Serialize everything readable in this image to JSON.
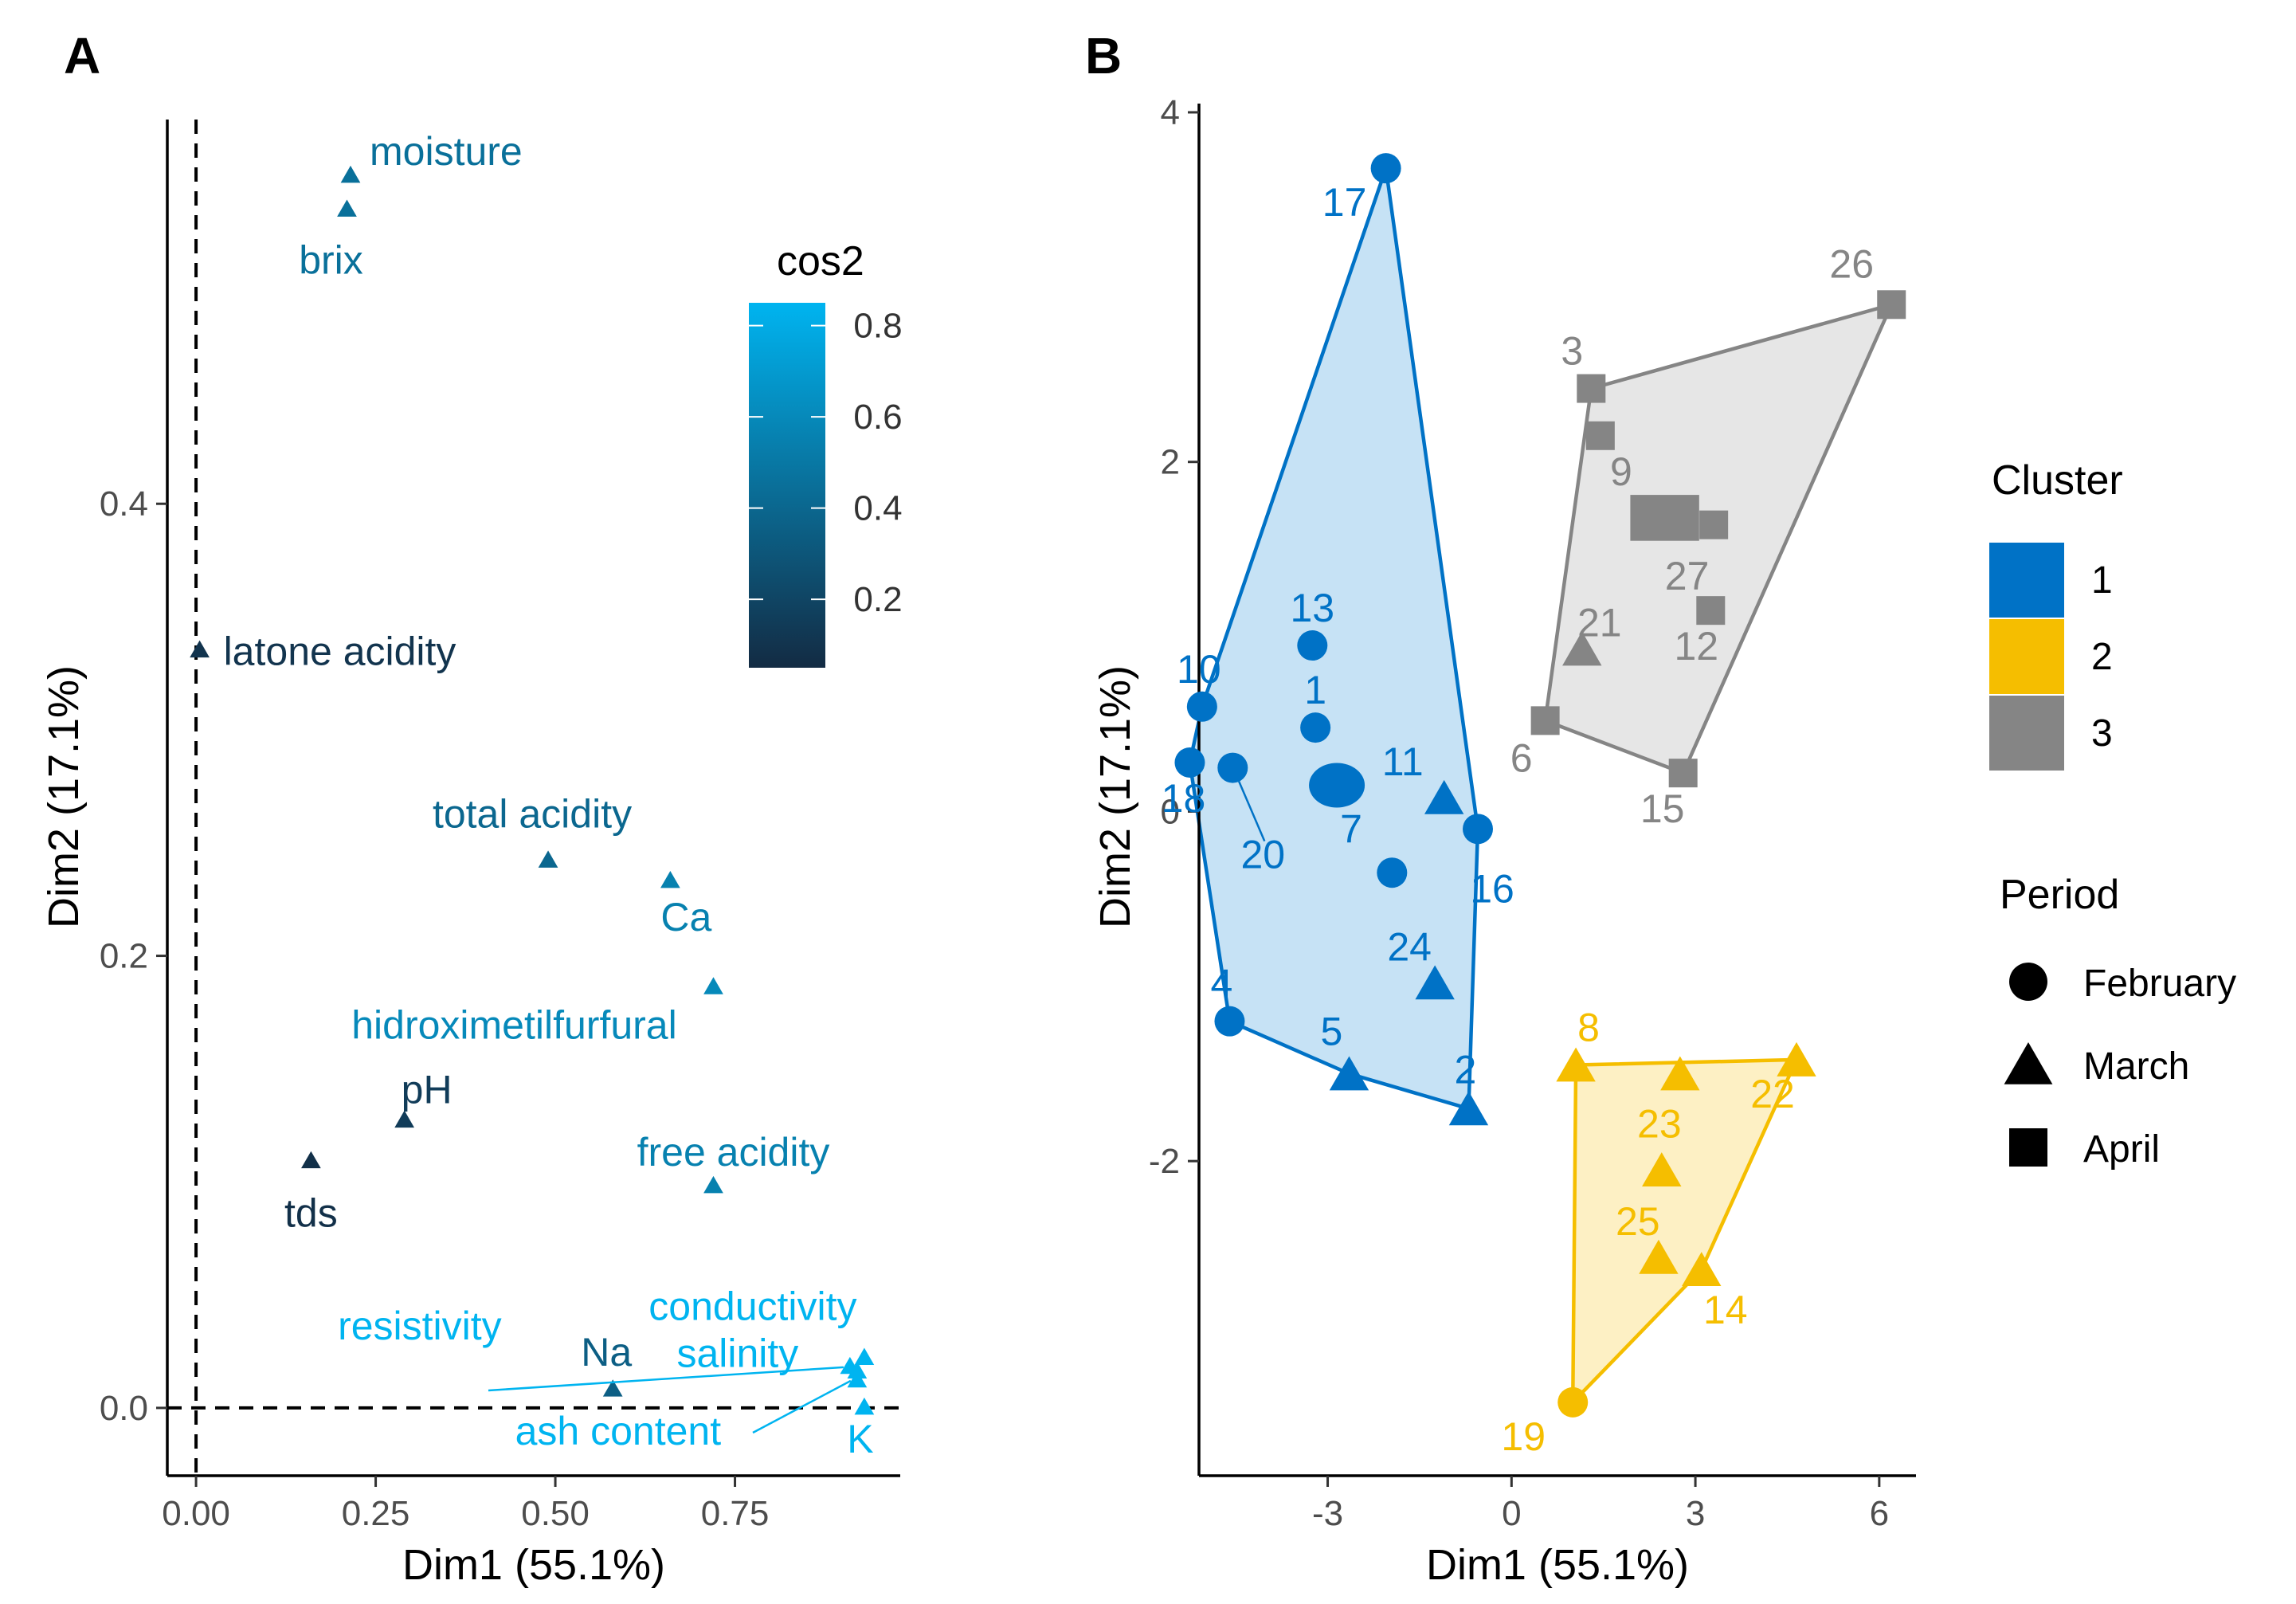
{
  "chart_data": [
    {
      "panel": "A",
      "type": "scatter",
      "xlabel": "Dim1 (55.1%)",
      "ylabel": "Dim2 (17.1%)",
      "xlim": [
        -0.04,
        0.98
      ],
      "ylim": [
        -0.03,
        0.57
      ],
      "xticks": [
        0.0,
        0.25,
        0.5,
        0.75
      ],
      "xtick_labels": [
        "0.00",
        "0.25",
        "0.50",
        "0.75"
      ],
      "yticks": [
        0.0,
        0.2,
        0.4
      ],
      "ytick_labels": [
        "0.0",
        "0.2",
        "0.4"
      ],
      "reference_lines": {
        "x": 0,
        "y": 0,
        "style": "dashed"
      },
      "color_by": "cos2",
      "colorbar": {
        "title": "cos2",
        "range": [
          0.05,
          0.85
        ],
        "ticks": [
          0.2,
          0.4,
          0.6,
          0.8
        ],
        "tick_labels": [
          "0.2",
          "0.4",
          "0.6",
          "0.8"
        ],
        "low_color": "#132b43",
        "high_color": "#00b4f0"
      },
      "variables": [
        {
          "name": "moisture",
          "x": 0.215,
          "y": 0.545,
          "cos2": 0.45
        },
        {
          "name": "brix",
          "x": 0.21,
          "y": 0.53,
          "cos2": 0.45
        },
        {
          "name": "latone acidity",
          "x": 0.005,
          "y": 0.335,
          "cos2": 0.1
        },
        {
          "name": "total acidity",
          "x": 0.49,
          "y": 0.242,
          "cos2": 0.4
        },
        {
          "name": "Ca",
          "x": 0.66,
          "y": 0.233,
          "cos2": 0.55
        },
        {
          "name": "hidroximetilfurfural",
          "x": 0.72,
          "y": 0.186,
          "cos2": 0.6
        },
        {
          "name": "pH",
          "x": 0.29,
          "y": 0.127,
          "cos2": 0.15
        },
        {
          "name": "tds",
          "x": 0.16,
          "y": 0.109,
          "cos2": 0.08
        },
        {
          "name": "free acidity",
          "x": 0.72,
          "y": 0.098,
          "cos2": 0.55
        },
        {
          "name": "conductivity",
          "x": 0.93,
          "y": 0.022,
          "cos2": 0.85
        },
        {
          "name": "resistivity",
          "x": 0.91,
          "y": 0.018,
          "cos2": 0.85
        },
        {
          "name": "salinity",
          "x": 0.92,
          "y": 0.016,
          "cos2": 0.85
        },
        {
          "name": "Na",
          "x": 0.58,
          "y": 0.008,
          "cos2": 0.35
        },
        {
          "name": "ash content",
          "x": 0.92,
          "y": 0.012,
          "cos2": 0.85
        },
        {
          "name": "K",
          "x": 0.93,
          "y": 0.0,
          "cos2": 0.85
        }
      ]
    },
    {
      "panel": "B",
      "type": "scatter",
      "xlabel": "Dim1 (55.1%)",
      "ylabel": "Dim2 (17.1%)",
      "xlim": [
        -5.1,
        6.6
      ],
      "ylim": [
        -3.8,
        4.05
      ],
      "xticks": [
        -3,
        0,
        3,
        6
      ],
      "xtick_labels": [
        "-3",
        "0",
        "3",
        "6"
      ],
      "yticks": [
        -2,
        0,
        2,
        4
      ],
      "ytick_labels": [
        "-2",
        "0",
        "2",
        "4"
      ],
      "legend_cluster": {
        "title": "Cluster",
        "entries": [
          {
            "label": "1",
            "color": "#0072c6"
          },
          {
            "label": "2",
            "color": "#f5be00"
          },
          {
            "label": "3",
            "color": "#858585"
          }
        ]
      },
      "legend_period": {
        "title": "Period",
        "entries": [
          {
            "label": "February",
            "shape": "circle"
          },
          {
            "label": "March",
            "shape": "triangle"
          },
          {
            "label": "April",
            "shape": "square"
          }
        ]
      },
      "hulls": [
        {
          "cluster": "1",
          "points": [
            "17",
            "16",
            "2",
            "5",
            "4",
            "18",
            "10"
          ]
        },
        {
          "cluster": "2",
          "points": [
            "22",
            "14",
            "19",
            "8"
          ]
        },
        {
          "cluster": "3",
          "points": [
            "26",
            "15",
            "6",
            "3"
          ]
        }
      ],
      "points": [
        {
          "label": "17",
          "x": -2.05,
          "y": 3.68,
          "cluster": "1",
          "period": "February"
        },
        {
          "label": "13",
          "x": -3.25,
          "y": 0.95,
          "cluster": "1",
          "period": "February"
        },
        {
          "label": "10",
          "x": -5.05,
          "y": 0.6,
          "cluster": "1",
          "period": "February"
        },
        {
          "label": "1",
          "x": -3.2,
          "y": 0.48,
          "cluster": "1",
          "period": "February"
        },
        {
          "label": "18",
          "x": -5.25,
          "y": 0.28,
          "cluster": "1",
          "period": "February"
        },
        {
          "label": "20",
          "x": -4.55,
          "y": 0.25,
          "cluster": "1",
          "period": "February"
        },
        {
          "label": "7",
          "x": -2.85,
          "y": 0.15,
          "cluster": "1",
          "period": "February"
        },
        {
          "label": "11",
          "x": -1.1,
          "y": 0.08,
          "cluster": "1",
          "period": "March"
        },
        {
          "label": "16",
          "x": -0.55,
          "y": -0.1,
          "cluster": "1",
          "period": "February"
        },
        {
          "label": "",
          "x": -1.95,
          "y": -0.35,
          "cluster": "1",
          "period": "February"
        },
        {
          "label": "24",
          "x": -1.25,
          "y": -0.98,
          "cluster": "1",
          "period": "March"
        },
        {
          "label": "4",
          "x": -4.6,
          "y": -1.2,
          "cluster": "1",
          "period": "February"
        },
        {
          "label": "5",
          "x": -2.65,
          "y": -1.5,
          "cluster": "1",
          "period": "March"
        },
        {
          "label": "2",
          "x": -0.7,
          "y": -1.7,
          "cluster": "1",
          "period": "March"
        },
        {
          "label": "26",
          "x": 6.2,
          "y": 2.9,
          "cluster": "3",
          "period": "April"
        },
        {
          "label": "3",
          "x": 1.3,
          "y": 2.42,
          "cluster": "3",
          "period": "April"
        },
        {
          "label": "9",
          "x": 1.45,
          "y": 2.15,
          "cluster": "3",
          "period": "April"
        },
        {
          "label": "27",
          "x": 2.5,
          "y": 1.68,
          "cluster": "3",
          "period": "April"
        },
        {
          "label": "",
          "x": 3.3,
          "y": 1.64,
          "cluster": "3",
          "period": "April"
        },
        {
          "label": "12",
          "x": 3.25,
          "y": 1.15,
          "cluster": "3",
          "period": "April"
        },
        {
          "label": "21",
          "x": 1.15,
          "y": 0.93,
          "cluster": "3",
          "period": "March"
        },
        {
          "label": "6",
          "x": 0.55,
          "y": 0.52,
          "cluster": "3",
          "period": "April"
        },
        {
          "label": "15",
          "x": 2.8,
          "y": 0.22,
          "cluster": "3",
          "period": "April"
        },
        {
          "label": "8",
          "x": 1.05,
          "y": -1.45,
          "cluster": "2",
          "period": "March"
        },
        {
          "label": "23",
          "x": 2.75,
          "y": -1.5,
          "cluster": "2",
          "period": "March"
        },
        {
          "label": "22",
          "x": 4.65,
          "y": -1.42,
          "cluster": "2",
          "period": "March"
        },
        {
          "label": "25",
          "x": 2.45,
          "y": -2.05,
          "cluster": "2",
          "period": "March"
        },
        {
          "label": "",
          "x": 2.4,
          "y": -2.55,
          "cluster": "2",
          "period": "March"
        },
        {
          "label": "14",
          "x": 3.1,
          "y": -2.62,
          "cluster": "2",
          "period": "March"
        },
        {
          "label": "19",
          "x": 1.0,
          "y": -3.38,
          "cluster": "2",
          "period": "February"
        }
      ]
    }
  ],
  "panel_labels": [
    "A",
    "B"
  ],
  "colors": {
    "cluster1_fill": "#c6e2f5",
    "cluster2_fill": "#fdf0c4",
    "cluster3_fill": "#e6e6e6"
  }
}
